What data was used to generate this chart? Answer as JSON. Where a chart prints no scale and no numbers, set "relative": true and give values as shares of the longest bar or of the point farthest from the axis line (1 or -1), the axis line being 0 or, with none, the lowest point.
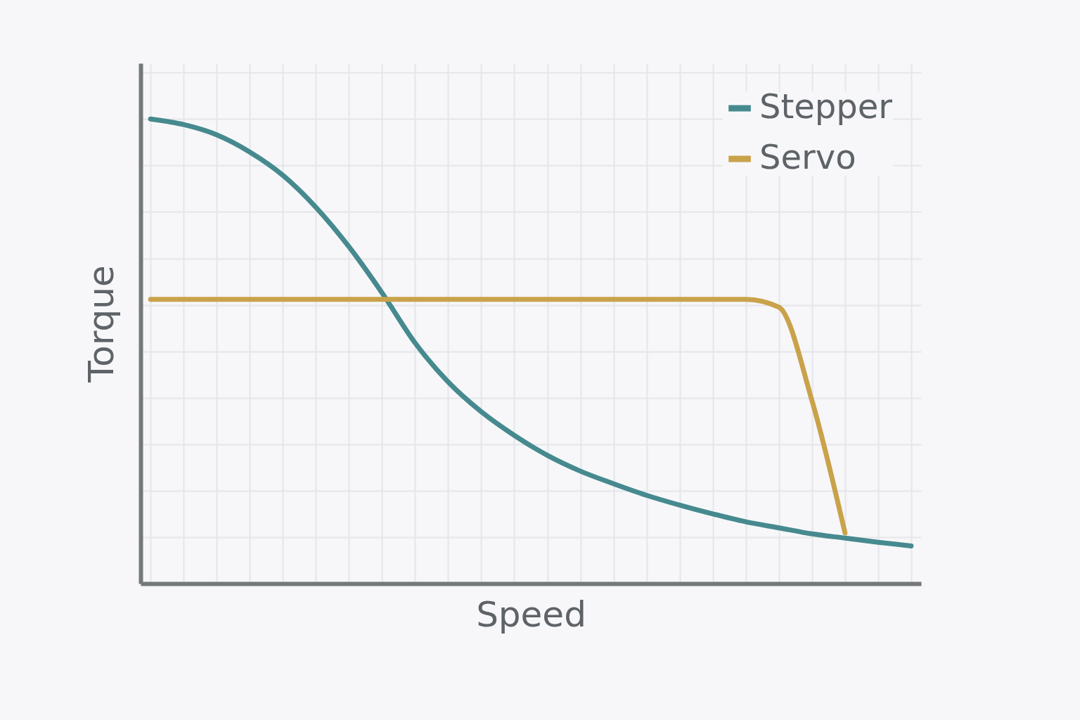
{
  "chart_data": {
    "type": "line",
    "relative": true,
    "xlabel": "Speed",
    "ylabel": "Torque",
    "grid": true,
    "legend": "top right",
    "line_style": "solid",
    "marker": "none",
    "categories": [
      null,
      null,
      null,
      null,
      null,
      null,
      null,
      null,
      null,
      null,
      null,
      null,
      null,
      null,
      null,
      null,
      null,
      null,
      null,
      null,
      null,
      null,
      null,
      null
    ],
    "series": [
      {
        "name": "Stepper",
        "color": "#468a8f",
        "values": [
          1.0,
          0.988,
          0.966,
          0.929,
          0.879,
          0.81,
          0.725,
          0.626,
          0.518,
          0.434,
          0.37,
          0.319,
          0.276,
          0.242,
          0.215,
          0.19,
          0.169,
          0.15,
          0.133,
          0.12,
          0.107,
          0.098,
          0.089,
          0.081
        ]
      },
      {
        "name": "Servo",
        "color": "#c9a24a",
        "values": [
          0.612,
          0.612,
          0.612,
          0.612,
          0.612,
          0.612,
          0.612,
          0.612,
          0.612,
          0.612,
          0.612,
          0.612,
          0.612,
          0.612,
          0.612,
          0.612,
          0.612,
          0.612,
          0.612,
          0.595,
          0.394,
          0.109,
          null,
          null
        ]
      }
    ]
  }
}
